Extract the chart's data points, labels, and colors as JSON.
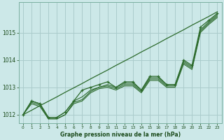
{
  "title": "Graphe pression niveau de la mer (hPa)",
  "bg_color": "#cce8e8",
  "grid_color": "#aacccc",
  "line_color": "#2d6b2d",
  "xlim": [
    0,
    23
  ],
  "ylim": [
    1011.7,
    1016.1
  ],
  "yticks": [
    1012,
    1013,
    1014,
    1015
  ],
  "xticks": [
    0,
    1,
    2,
    3,
    4,
    5,
    6,
    7,
    8,
    9,
    10,
    11,
    12,
    13,
    14,
    15,
    16,
    17,
    18,
    19,
    20,
    21,
    22,
    23
  ],
  "line_straight": [
    1012.0,
    1012.16,
    1012.33,
    1012.49,
    1012.65,
    1012.82,
    1012.98,
    1013.14,
    1013.31,
    1013.47,
    1013.63,
    1013.8,
    1013.96,
    1014.12,
    1014.29,
    1014.45,
    1014.61,
    1014.78,
    1014.94,
    1015.1,
    1015.27,
    1015.43,
    1015.59,
    1015.76
  ],
  "line_main": [
    1012.0,
    1012.5,
    1012.4,
    1011.9,
    1011.9,
    1012.1,
    1012.5,
    1012.9,
    1013.0,
    1013.1,
    1013.2,
    1013.0,
    1013.2,
    1013.2,
    1012.9,
    1013.4,
    1013.4,
    1013.1,
    1013.1,
    1014.0,
    1013.8,
    1015.2,
    1015.45,
    1015.7
  ],
  "line2": [
    1012.0,
    1012.5,
    1012.4,
    1011.9,
    1011.9,
    1012.1,
    1012.5,
    1012.65,
    1012.9,
    1013.0,
    1013.1,
    1013.0,
    1013.15,
    1013.15,
    1012.9,
    1013.35,
    1013.35,
    1013.1,
    1013.1,
    1013.95,
    1013.75,
    1015.1,
    1015.4,
    1015.65
  ],
  "line3": [
    1012.0,
    1012.45,
    1012.35,
    1011.85,
    1011.85,
    1012.0,
    1012.45,
    1012.55,
    1012.85,
    1013.0,
    1013.05,
    1012.95,
    1013.1,
    1013.1,
    1012.85,
    1013.3,
    1013.3,
    1013.05,
    1013.05,
    1013.9,
    1013.7,
    1015.05,
    1015.35,
    1015.6
  ],
  "line4": [
    1012.0,
    1012.4,
    1012.3,
    1011.85,
    1011.85,
    1012.0,
    1012.4,
    1012.5,
    1012.8,
    1012.95,
    1013.0,
    1012.9,
    1013.05,
    1013.05,
    1012.8,
    1013.25,
    1013.25,
    1013.0,
    1013.0,
    1013.85,
    1013.65,
    1015.0,
    1015.3,
    1015.55
  ]
}
